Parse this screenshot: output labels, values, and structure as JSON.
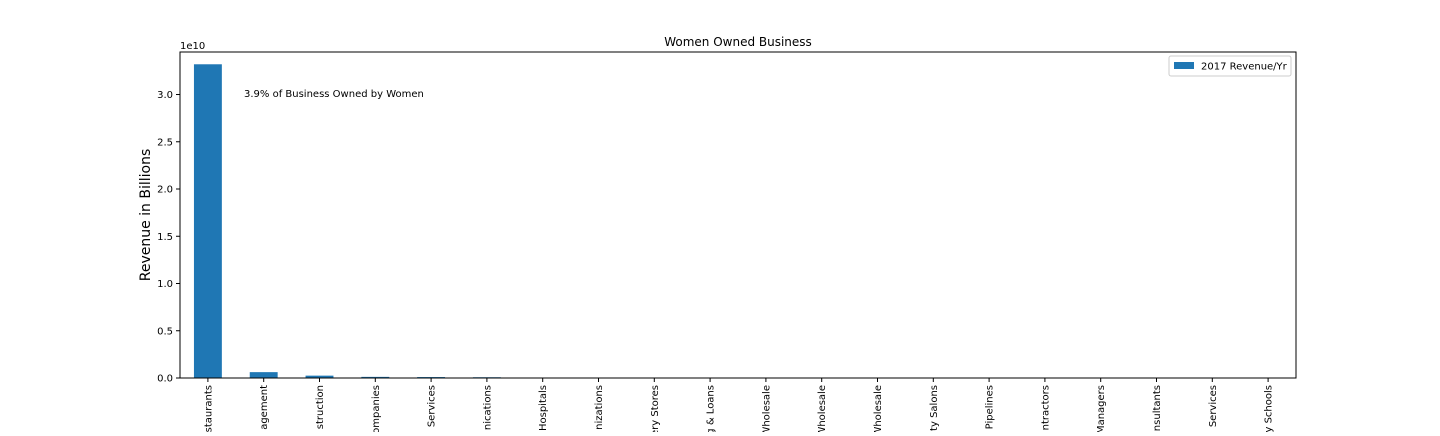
{
  "chart_data": {
    "type": "bar",
    "title": "Women Owned Business",
    "xlabel": "",
    "ylabel": "Revenue in Billions",
    "y_offset_label": "1e10",
    "y_scale_factor": 10000000000,
    "ylim": [
      0,
      34500000000
    ],
    "y_ticks": [
      0,
      5000000000,
      10000000000,
      15000000000,
      20000000000,
      25000000000,
      30000000000
    ],
    "y_tick_labels": [
      "0.0",
      "0.5",
      "1.0",
      "1.5",
      "2.0",
      "2.5",
      "3.0"
    ],
    "grid": false,
    "legend_position": "top-right",
    "annotation": "3.9% of Business Owned by Women",
    "categories": [
      "staurants",
      "agement",
      "struction",
      "ompanies",
      "Services",
      "nications",
      "Hospitals",
      "nizations",
      "ery Stores",
      "g & Loans",
      "Wholesale",
      "Wholesale",
      "Wholesale",
      "ty Salons",
      "Pipelines",
      "ntractors",
      "Managers",
      "nsultants",
      "Services",
      "y Schools"
    ],
    "series": [
      {
        "name": "2017 Revenue/Yr",
        "color": "#1f77b4",
        "values": [
          33200000000,
          620000000,
          250000000,
          120000000,
          100000000,
          80000000,
          25000000,
          20000000,
          15000000,
          12000000,
          10000000,
          9000000,
          8000000,
          7000000,
          6000000,
          5000000,
          4000000,
          3000000,
          2000000,
          1000000
        ]
      }
    ]
  }
}
